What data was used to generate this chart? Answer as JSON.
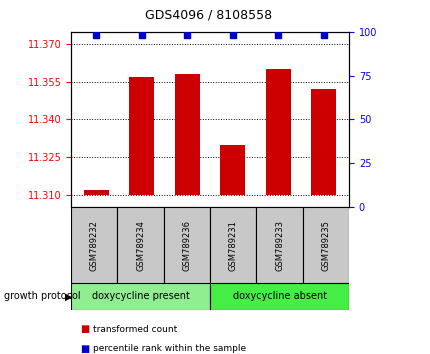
{
  "title": "GDS4096 / 8108558",
  "samples": [
    "GSM789232",
    "GSM789234",
    "GSM789236",
    "GSM789231",
    "GSM789233",
    "GSM789235"
  ],
  "transformed_counts": [
    11.312,
    11.357,
    11.358,
    11.33,
    11.36,
    11.352
  ],
  "percentile_ranks": [
    98,
    98,
    98,
    98,
    98,
    98
  ],
  "ylim_left": [
    11.305,
    11.375
  ],
  "ylim_right": [
    0,
    100
  ],
  "yticks_left": [
    11.31,
    11.325,
    11.34,
    11.355,
    11.37
  ],
  "yticks_right": [
    0,
    25,
    50,
    75,
    100
  ],
  "bar_color": "#cc0000",
  "dot_color": "#0000cc",
  "bar_width": 0.55,
  "group_label": "growth protocol",
  "groups": [
    {
      "label": "doxycycline present",
      "color": "#90ee90",
      "indices": [
        0,
        1,
        2
      ]
    },
    {
      "label": "doxycycline absent",
      "color": "#44ee44",
      "indices": [
        3,
        4,
        5
      ]
    }
  ],
  "legend_items": [
    {
      "label": "transformed count",
      "color": "#cc0000"
    },
    {
      "label": "percentile rank within the sample",
      "color": "#0000cc"
    }
  ],
  "label_area_color": "#c8c8c8",
  "baseline": 11.31,
  "title_fontsize": 9,
  "tick_fontsize": 7,
  "sample_fontsize": 6,
  "group_fontsize": 7,
  "legend_fontsize": 6.5
}
